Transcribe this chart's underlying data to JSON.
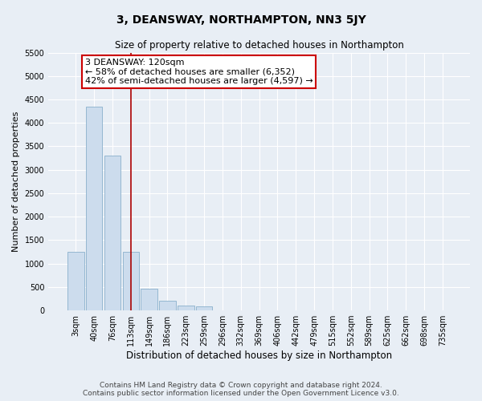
{
  "title": "3, DEANSWAY, NORTHAMPTON, NN3 5JY",
  "subtitle": "Size of property relative to detached houses in Northampton",
  "xlabel": "Distribution of detached houses by size in Northampton",
  "ylabel": "Number of detached properties",
  "bar_labels": [
    "3sqm",
    "40sqm",
    "76sqm",
    "113sqm",
    "149sqm",
    "186sqm",
    "223sqm",
    "259sqm",
    "296sqm",
    "332sqm",
    "369sqm",
    "406sqm",
    "442sqm",
    "479sqm",
    "515sqm",
    "552sqm",
    "589sqm",
    "625sqm",
    "662sqm",
    "698sqm",
    "735sqm"
  ],
  "bar_values": [
    1250,
    4350,
    3300,
    1250,
    470,
    200,
    100,
    80,
    0,
    0,
    0,
    0,
    0,
    0,
    0,
    0,
    0,
    0,
    0,
    0,
    0
  ],
  "bar_color": "#ccdced",
  "bar_edge_color": "#8ab0cc",
  "red_line_index": 3,
  "ylim": [
    0,
    5500
  ],
  "yticks": [
    0,
    500,
    1000,
    1500,
    2000,
    2500,
    3000,
    3500,
    4000,
    4500,
    5000,
    5500
  ],
  "annotation_text": "3 DEANSWAY: 120sqm\n← 58% of detached houses are smaller (6,352)\n42% of semi-detached houses are larger (4,597) →",
  "annotation_box_color": "#ffffff",
  "annotation_box_edge": "#cc0000",
  "red_line_color": "#aa0000",
  "footnote": "Contains HM Land Registry data © Crown copyright and database right 2024.\nContains public sector information licensed under the Open Government Licence v3.0.",
  "background_color": "#e8eef5",
  "plot_background": "#e8eef5",
  "title_fontsize": 10,
  "subtitle_fontsize": 8.5,
  "xlabel_fontsize": 8.5,
  "ylabel_fontsize": 8,
  "tick_fontsize": 7,
  "footnote_fontsize": 6.5,
  "annotation_fontsize": 8
}
